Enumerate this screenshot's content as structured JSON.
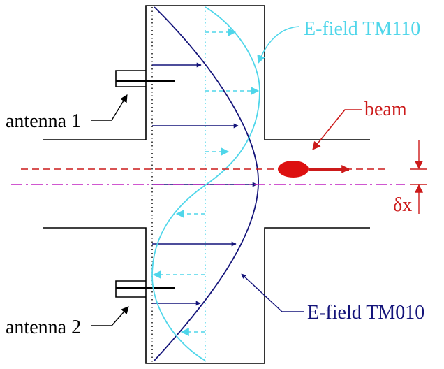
{
  "labels": {
    "efield_tm110": "E-field TM110",
    "beam": "beam",
    "antenna1": "antenna 1",
    "antenna2": "antenna 2",
    "efield_tm010": "E-field TM010",
    "delta_x": "δx"
  },
  "colors": {
    "structure": "#000000",
    "tm010": "#14147a",
    "tm110": "#4fd6ea",
    "beam": "#cc1a1a",
    "axis": "#c020c0",
    "offset_marker": "#cc1a1a"
  }
}
